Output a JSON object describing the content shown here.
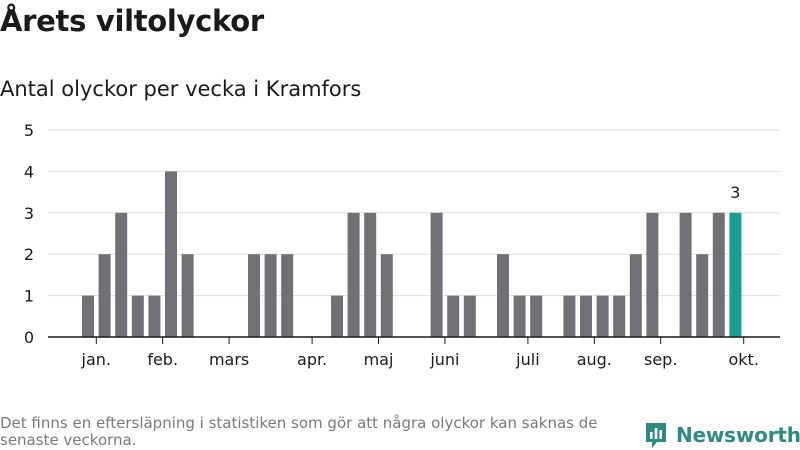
{
  "header": {
    "title": "Årets viltolyckor",
    "subtitle": "Antal olyckor per vecka i Kramfors"
  },
  "footer": {
    "note": "Det finns en eftersläpning i statistiken som gör att några olyckor kan saknas de senaste veckorna.",
    "brand": "Newsworthy"
  },
  "colors": {
    "bar": "#717075",
    "highlight": "#1a9e8f",
    "grid": "#dddddd",
    "axis": "#1a1a1a",
    "text": "#1a1a1a",
    "brand": "#2e8b80"
  },
  "chart_data": {
    "type": "bar",
    "title": "Antal olyckor per vecka i Kramfors",
    "xlabel": "",
    "ylabel": "",
    "ylim": [
      0,
      5
    ],
    "yticks": [
      0,
      1,
      2,
      3,
      4,
      5
    ],
    "weeks": [
      1,
      2,
      3,
      4,
      5,
      6,
      7,
      8,
      9,
      10,
      11,
      12,
      13,
      14,
      15,
      16,
      17,
      18,
      19,
      20,
      21,
      22,
      23,
      24,
      25,
      26,
      27,
      28,
      29,
      30,
      31,
      32,
      33,
      34,
      35,
      36,
      37,
      38,
      39,
      40
    ],
    "values": [
      1,
      2,
      3,
      1,
      1,
      4,
      2,
      0,
      0,
      0,
      2,
      2,
      2,
      0,
      0,
      1,
      3,
      3,
      2,
      0,
      0,
      3,
      1,
      1,
      0,
      2,
      1,
      1,
      0,
      1,
      1,
      1,
      1,
      2,
      3,
      0,
      3,
      2,
      3,
      3
    ],
    "highlight_index": 39,
    "highlight_label": "3",
    "month_labels": [
      {
        "label": "jan.",
        "position": 1.5
      },
      {
        "label": "feb.",
        "position": 5.5
      },
      {
        "label": "mars",
        "position": 9.5
      },
      {
        "label": "apr.",
        "position": 14.5
      },
      {
        "label": "maj",
        "position": 18.5
      },
      {
        "label": "juni",
        "position": 22.5
      },
      {
        "label": "juli",
        "position": 27.5
      },
      {
        "label": "aug.",
        "position": 31.5
      },
      {
        "label": "sep.",
        "position": 35.5
      },
      {
        "label": "okt.",
        "position": 40.5
      }
    ],
    "grid": true
  }
}
